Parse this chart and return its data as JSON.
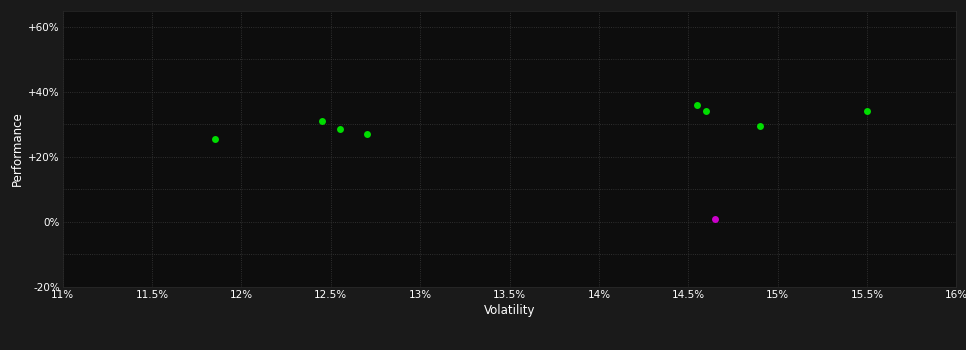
{
  "background_color": "#1a1a1a",
  "plot_bg_color": "#0d0d0d",
  "grid_color": "#3a3a3a",
  "text_color": "#ffffff",
  "xlabel": "Volatility",
  "ylabel": "Performance",
  "xlim": [
    0.11,
    0.16
  ],
  "ylim": [
    -0.2,
    0.65
  ],
  "xticks": [
    0.11,
    0.115,
    0.12,
    0.125,
    0.13,
    0.135,
    0.14,
    0.145,
    0.15,
    0.155,
    0.16
  ],
  "yticks": [
    -0.2,
    -0.1,
    0.0,
    0.1,
    0.2,
    0.3,
    0.4,
    0.5,
    0.6
  ],
  "ytick_labels": [
    "-20%",
    "",
    "0%",
    "",
    "+20%",
    "",
    "+40%",
    "",
    "+60%"
  ],
  "xtick_labels": [
    "11%",
    "11.5%",
    "12%",
    "12.5%",
    "13%",
    "13.5%",
    "14%",
    "14.5%",
    "15%",
    "15.5%",
    "16%"
  ],
  "green_points": [
    [
      0.1185,
      0.255
    ],
    [
      0.1245,
      0.31
    ],
    [
      0.1255,
      0.285
    ],
    [
      0.127,
      0.27
    ],
    [
      0.1455,
      0.36
    ],
    [
      0.146,
      0.34
    ],
    [
      0.149,
      0.295
    ],
    [
      0.155,
      0.34
    ]
  ],
  "magenta_points": [
    [
      0.1465,
      0.008
    ]
  ],
  "point_size": 25,
  "green_color": "#00dd00",
  "magenta_color": "#cc00cc"
}
